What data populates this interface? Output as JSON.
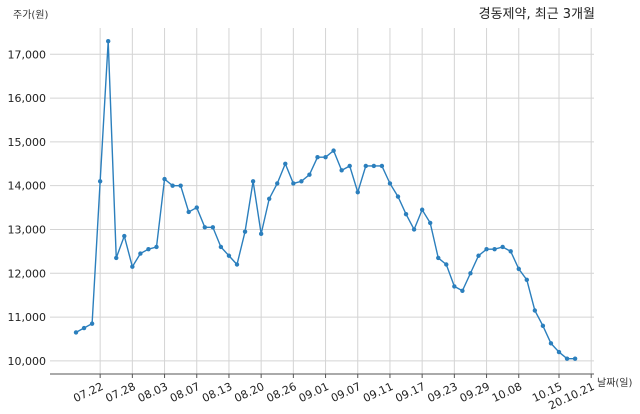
{
  "chart_data": {
    "type": "line",
    "title": "경동제약, 최근 3개월",
    "ylabel": "주가(원)",
    "xlabel": "날짜(일)",
    "ylim": [
      9700,
      17600
    ],
    "yticks": [
      10000,
      11000,
      12000,
      13000,
      14000,
      15000,
      16000,
      17000
    ],
    "ytick_labels": [
      "10,000",
      "11,000",
      "12,000",
      "13,000",
      "14,000",
      "15,000",
      "16,000",
      "17,000"
    ],
    "xtick_labels": [
      "07.22",
      "07.28",
      "08.03",
      "08.07",
      "08.13",
      "08.20",
      "08.26",
      "09.01",
      "09.07",
      "09.11",
      "09.17",
      "09.23",
      "09.29",
      "10.08",
      "10.15",
      "20.10.21"
    ],
    "xtick_index": [
      3,
      7,
      11,
      15,
      19,
      23,
      27,
      31,
      35,
      39,
      43,
      47,
      51,
      55,
      60,
      64
    ],
    "grid": true,
    "line_color": "#2b7fbd",
    "series": [
      {
        "values": [
          10650,
          10750,
          10850,
          14100,
          17300,
          12350,
          12850,
          12150,
          12450,
          12550,
          12600,
          14150,
          14000,
          14000,
          13400,
          13500,
          13050,
          13050,
          12600,
          12400,
          12200,
          12950,
          14100,
          12900,
          13700,
          14050,
          14500,
          14050,
          14100,
          14250,
          14650,
          14650,
          14800,
          14350,
          14450,
          13850,
          14450,
          14450,
          14450,
          14050,
          13750,
          13350,
          13000,
          13450,
          13150,
          12350,
          12200,
          11700,
          11600,
          12000,
          12400,
          12550,
          12550,
          12600,
          12500,
          12100,
          11850,
          11150,
          10800,
          10400,
          10200,
          10050,
          10050
        ]
      }
    ]
  }
}
